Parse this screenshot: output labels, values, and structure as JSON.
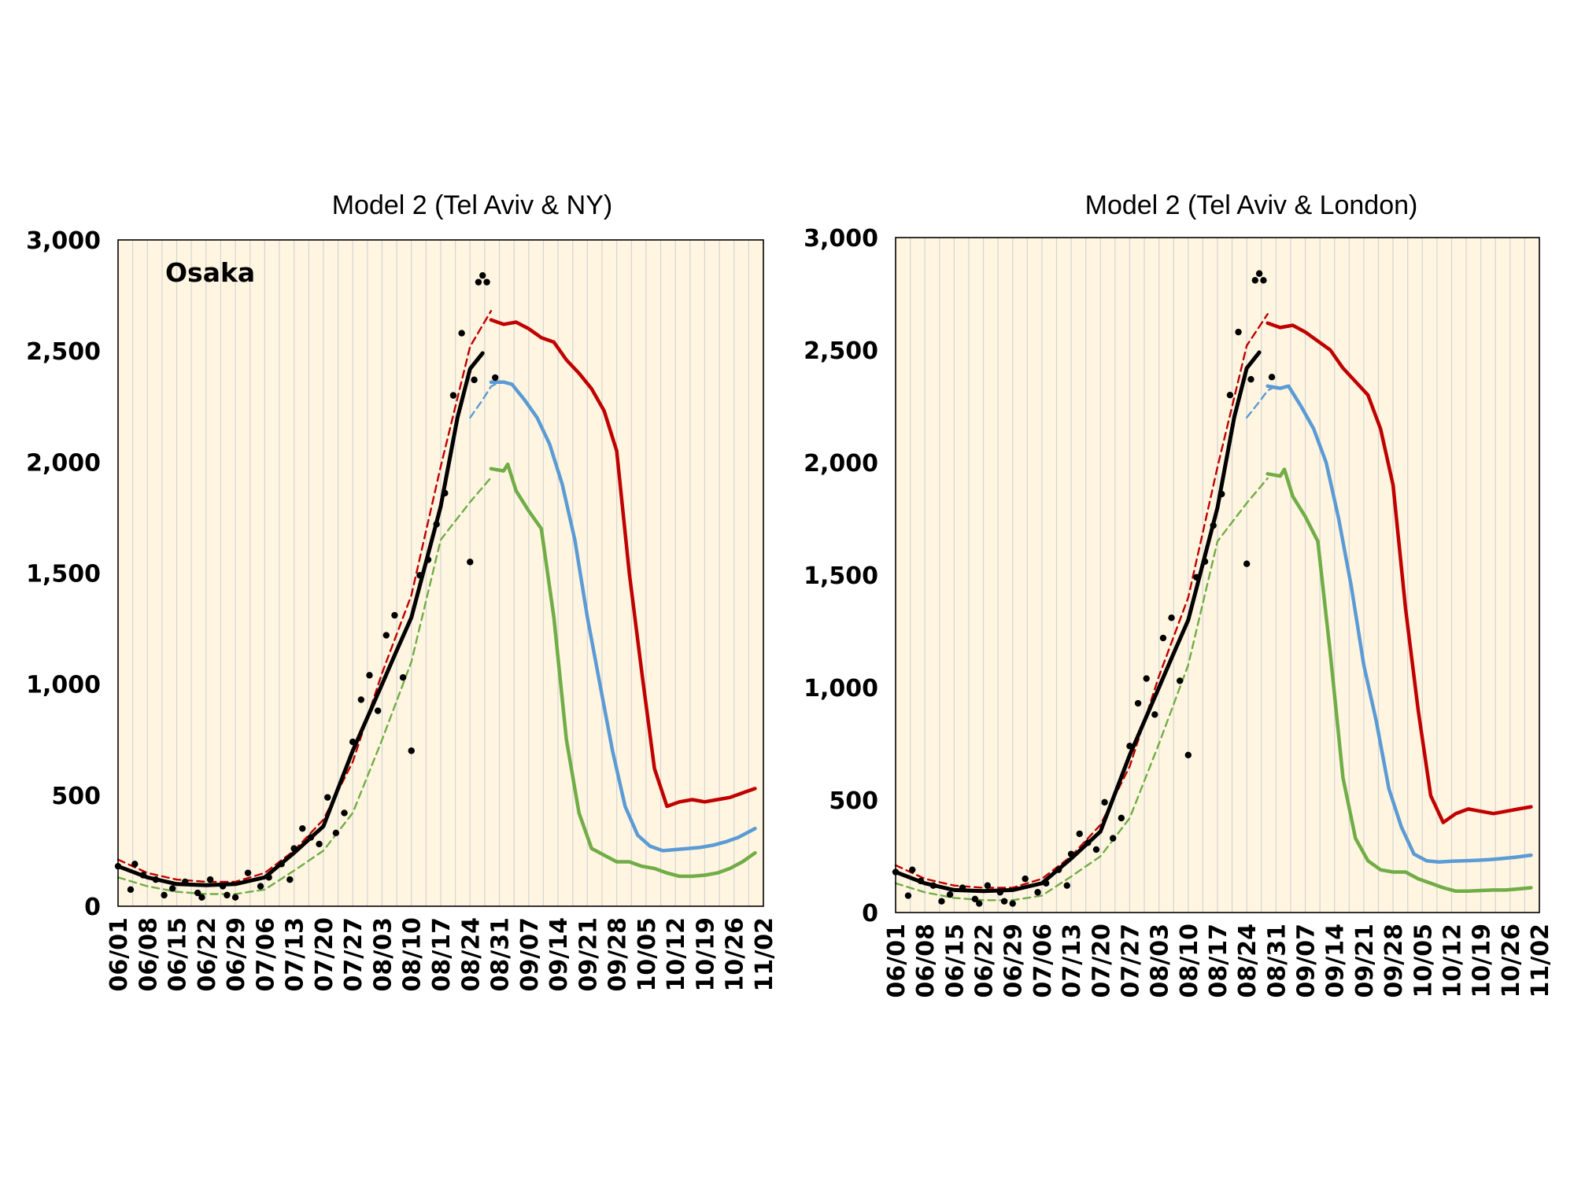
{
  "colors": {
    "plot_bg": "#fff5e0",
    "grid": "#d4d4d4",
    "observed": "#000000",
    "red": "#c00000",
    "blue": "#5b9bd5",
    "green": "#70ad47"
  },
  "chart_data": [
    {
      "type": "line",
      "title": "Model 2 (Tel Aviv & NY)",
      "annotation": "Osaka",
      "xlabel": "",
      "ylabel": "",
      "x_range": [
        "06/01",
        "11/02"
      ],
      "ylim": [
        0,
        3000
      ],
      "y_ticks": [
        "0",
        "500",
        "1,000",
        "1,500",
        "2,000",
        "2,500",
        "3,000"
      ],
      "x_ticks": [
        "06/01",
        "06/08",
        "06/15",
        "06/22",
        "06/29",
        "07/06",
        "07/13",
        "07/20",
        "07/27",
        "08/03",
        "08/10",
        "08/17",
        "08/24",
        "08/31",
        "09/07",
        "09/14",
        "09/21",
        "09/28",
        "10/05",
        "10/12",
        "10/19",
        "10/26",
        "11/02"
      ],
      "grid": "vertical",
      "series": [
        {
          "style": "solid",
          "color": "red",
          "x": [
            "08/29",
            "09/01",
            "09/04",
            "09/07",
            "09/10",
            "09/13",
            "09/16",
            "09/19",
            "09/22",
            "09/25",
            "09/28",
            "10/01",
            "10/04",
            "10/07",
            "10/10",
            "10/13",
            "10/16",
            "10/19",
            "10/22",
            "10/25",
            "10/28",
            "10/31"
          ],
          "y": [
            2640,
            2620,
            2630,
            2600,
            2560,
            2540,
            2460,
            2400,
            2330,
            2230,
            2050,
            1500,
            1050,
            620,
            450,
            470,
            480,
            470,
            480,
            490,
            510,
            530
          ]
        },
        {
          "style": "solid",
          "color": "blue",
          "x": [
            "08/29",
            "09/01",
            "09/03",
            "09/06",
            "09/09",
            "09/12",
            "09/15",
            "09/18",
            "09/21",
            "09/24",
            "09/27",
            "09/30",
            "10/03",
            "10/06",
            "10/09",
            "10/12",
            "10/15",
            "10/18",
            "10/21",
            "10/24",
            "10/27",
            "10/31"
          ],
          "y": [
            2360,
            2360,
            2350,
            2280,
            2200,
            2080,
            1900,
            1650,
            1300,
            1000,
            700,
            450,
            320,
            270,
            250,
            255,
            260,
            265,
            275,
            290,
            310,
            350
          ]
        },
        {
          "style": "solid",
          "color": "green",
          "x": [
            "08/29",
            "09/01",
            "09/02",
            "09/04",
            "09/07",
            "09/10",
            "09/13",
            "09/16",
            "09/19",
            "09/22",
            "09/25",
            "09/28",
            "10/01",
            "10/04",
            "10/07",
            "10/10",
            "10/13",
            "10/16",
            "10/19",
            "10/22",
            "10/25",
            "10/28",
            "10/31"
          ],
          "y": [
            1970,
            1960,
            1990,
            1870,
            1780,
            1700,
            1300,
            750,
            420,
            260,
            230,
            200,
            200,
            180,
            170,
            150,
            135,
            135,
            140,
            150,
            170,
            200,
            240
          ]
        },
        {
          "style": "dashed",
          "color": "red",
          "x": [
            "06/01",
            "06/08",
            "06/15",
            "06/22",
            "06/29",
            "07/06",
            "07/13",
            "07/20",
            "07/27",
            "08/03",
            "08/10",
            "08/17",
            "08/24",
            "08/29"
          ],
          "y": [
            210,
            150,
            120,
            110,
            110,
            150,
            250,
            390,
            650,
            1050,
            1400,
            1980,
            2520,
            2680
          ]
        },
        {
          "style": "dashed",
          "color": "blue",
          "x": [
            "08/24",
            "08/27",
            "08/29",
            "08/31"
          ],
          "y": [
            2200,
            2280,
            2340,
            2360
          ]
        },
        {
          "style": "dashed",
          "color": "green",
          "x": [
            "06/01",
            "06/08",
            "06/15",
            "06/22",
            "06/29",
            "07/06",
            "07/13",
            "07/20",
            "07/27",
            "08/03",
            "08/10",
            "08/17",
            "08/24",
            "08/29"
          ],
          "y": [
            130,
            90,
            65,
            55,
            55,
            75,
            160,
            250,
            420,
            750,
            1100,
            1650,
            1820,
            1930
          ]
        },
        {
          "style": "solid-thick",
          "color": "observed",
          "x": [
            "06/01",
            "06/08",
            "06/15",
            "06/22",
            "06/29",
            "07/06",
            "07/13",
            "07/20",
            "07/27",
            "08/03",
            "08/06",
            "08/10",
            "08/17",
            "08/21",
            "08/24",
            "08/27"
          ],
          "y": [
            180,
            130,
            100,
            95,
            100,
            130,
            240,
            360,
            700,
            1000,
            1130,
            1300,
            1800,
            2200,
            2420,
            2490
          ]
        },
        {
          "style": "points",
          "color": "observed",
          "x": [
            "06/01",
            "06/04",
            "06/05",
            "06/07",
            "06/10",
            "06/12",
            "06/14",
            "06/17",
            "06/20",
            "06/21",
            "06/23",
            "06/26",
            "06/27",
            "06/29",
            "07/02",
            "07/05",
            "07/07",
            "07/10",
            "07/12",
            "07/13",
            "07/15",
            "07/17",
            "07/19",
            "07/21",
            "07/23",
            "07/25",
            "07/27",
            "07/29",
            "07/31",
            "08/02",
            "08/04",
            "08/06",
            "08/08",
            "08/10",
            "08/12",
            "08/14",
            "08/16",
            "08/18",
            "08/20",
            "08/22",
            "08/24",
            "08/25",
            "08/26",
            "08/27",
            "08/28",
            "08/30"
          ],
          "y": [
            180,
            75,
            190,
            140,
            120,
            50,
            80,
            110,
            60,
            40,
            120,
            90,
            50,
            40,
            150,
            90,
            130,
            190,
            120,
            260,
            350,
            310,
            280,
            490,
            330,
            420,
            740,
            930,
            1040,
            880,
            1220,
            1310,
            1030,
            700,
            1490,
            1560,
            1720,
            1860,
            2300,
            2580,
            1550,
            2370,
            2810,
            2840,
            2810,
            2380
          ]
        }
      ]
    },
    {
      "type": "line",
      "title": "Model 2 (Tel Aviv & London)",
      "xlabel": "",
      "ylabel": "",
      "x_range": [
        "06/01",
        "11/02"
      ],
      "ylim": [
        0,
        3000
      ],
      "y_ticks": [
        "0",
        "500",
        "1,000",
        "1,500",
        "2,000",
        "2,500",
        "3,000"
      ],
      "x_ticks": [
        "06/01",
        "06/08",
        "06/15",
        "06/22",
        "06/29",
        "07/06",
        "07/13",
        "07/20",
        "07/27",
        "08/03",
        "08/10",
        "08/17",
        "08/24",
        "08/31",
        "09/07",
        "09/14",
        "09/21",
        "09/28",
        "10/05",
        "10/12",
        "10/19",
        "10/26",
        "11/02"
      ],
      "grid": "vertical",
      "series": [
        {
          "style": "solid",
          "color": "red",
          "x": [
            "08/29",
            "09/01",
            "09/04",
            "09/07",
            "09/10",
            "09/13",
            "09/16",
            "09/19",
            "09/22",
            "09/25",
            "09/28",
            "10/01",
            "10/04",
            "10/07",
            "10/10",
            "10/13",
            "10/16",
            "10/19",
            "10/22",
            "10/25",
            "10/28",
            "10/31"
          ],
          "y": [
            2620,
            2600,
            2610,
            2580,
            2540,
            2500,
            2420,
            2360,
            2300,
            2150,
            1900,
            1350,
            900,
            520,
            400,
            440,
            460,
            450,
            440,
            450,
            460,
            470
          ]
        },
        {
          "style": "solid",
          "color": "blue",
          "x": [
            "08/29",
            "09/01",
            "09/03",
            "09/06",
            "09/09",
            "09/12",
            "09/15",
            "09/18",
            "09/21",
            "09/24",
            "09/27",
            "09/30",
            "10/03",
            "10/06",
            "10/09",
            "10/12",
            "10/15",
            "10/18",
            "10/21",
            "10/24",
            "10/27",
            "10/31"
          ],
          "y": [
            2340,
            2330,
            2340,
            2250,
            2150,
            2000,
            1750,
            1450,
            1100,
            850,
            550,
            380,
            260,
            230,
            225,
            228,
            230,
            232,
            235,
            240,
            245,
            255
          ]
        },
        {
          "style": "solid",
          "color": "green",
          "x": [
            "08/29",
            "09/01",
            "09/02",
            "09/04",
            "09/07",
            "09/10",
            "09/13",
            "09/16",
            "09/19",
            "09/22",
            "09/25",
            "09/28",
            "10/01",
            "10/04",
            "10/07",
            "10/10",
            "10/13",
            "10/16",
            "10/19",
            "10/22",
            "10/25",
            "10/28",
            "10/31"
          ],
          "y": [
            1950,
            1940,
            1970,
            1850,
            1760,
            1650,
            1150,
            600,
            330,
            230,
            190,
            180,
            180,
            150,
            130,
            110,
            95,
            95,
            98,
            100,
            100,
            105,
            110
          ]
        },
        {
          "style": "dashed",
          "color": "red",
          "x": [
            "06/01",
            "06/08",
            "06/15",
            "06/22",
            "06/29",
            "07/06",
            "07/13",
            "07/20",
            "07/27",
            "08/03",
            "08/10",
            "08/17",
            "08/24",
            "08/29"
          ],
          "y": [
            210,
            150,
            120,
            110,
            110,
            150,
            250,
            390,
            650,
            1050,
            1400,
            1980,
            2520,
            2660
          ]
        },
        {
          "style": "dashed",
          "color": "blue",
          "x": [
            "08/24",
            "08/27",
            "08/29",
            "08/31"
          ],
          "y": [
            2200,
            2270,
            2320,
            2340
          ]
        },
        {
          "style": "dashed",
          "color": "green",
          "x": [
            "06/01",
            "06/08",
            "06/15",
            "06/22",
            "06/29",
            "07/06",
            "07/13",
            "07/20",
            "07/27",
            "08/03",
            "08/10",
            "08/17",
            "08/24",
            "08/29"
          ],
          "y": [
            130,
            90,
            65,
            55,
            55,
            75,
            160,
            250,
            420,
            750,
            1100,
            1650,
            1820,
            1930
          ]
        },
        {
          "style": "solid-thick",
          "color": "observed",
          "x": [
            "06/01",
            "06/08",
            "06/15",
            "06/22",
            "06/29",
            "07/06",
            "07/13",
            "07/20",
            "07/27",
            "08/03",
            "08/06",
            "08/10",
            "08/17",
            "08/21",
            "08/24",
            "08/27"
          ],
          "y": [
            180,
            130,
            100,
            95,
            100,
            130,
            240,
            360,
            700,
            1000,
            1130,
            1300,
            1800,
            2200,
            2420,
            2490
          ]
        },
        {
          "style": "points",
          "color": "observed",
          "x": [
            "06/01",
            "06/04",
            "06/05",
            "06/07",
            "06/10",
            "06/12",
            "06/14",
            "06/17",
            "06/20",
            "06/21",
            "06/23",
            "06/26",
            "06/27",
            "06/29",
            "07/02",
            "07/05",
            "07/07",
            "07/10",
            "07/12",
            "07/13",
            "07/15",
            "07/17",
            "07/19",
            "07/21",
            "07/23",
            "07/25",
            "07/27",
            "07/29",
            "07/31",
            "08/02",
            "08/04",
            "08/06",
            "08/08",
            "08/10",
            "08/12",
            "08/14",
            "08/16",
            "08/18",
            "08/20",
            "08/22",
            "08/24",
            "08/25",
            "08/26",
            "08/27",
            "08/28",
            "08/30"
          ],
          "y": [
            180,
            75,
            190,
            140,
            120,
            50,
            80,
            110,
            60,
            40,
            120,
            90,
            50,
            40,
            150,
            90,
            130,
            190,
            120,
            260,
            350,
            310,
            280,
            490,
            330,
            420,
            740,
            930,
            1040,
            880,
            1220,
            1310,
            1030,
            700,
            1490,
            1560,
            1720,
            1860,
            2300,
            2580,
            1550,
            2370,
            2810,
            2840,
            2810,
            2380
          ]
        }
      ]
    }
  ]
}
